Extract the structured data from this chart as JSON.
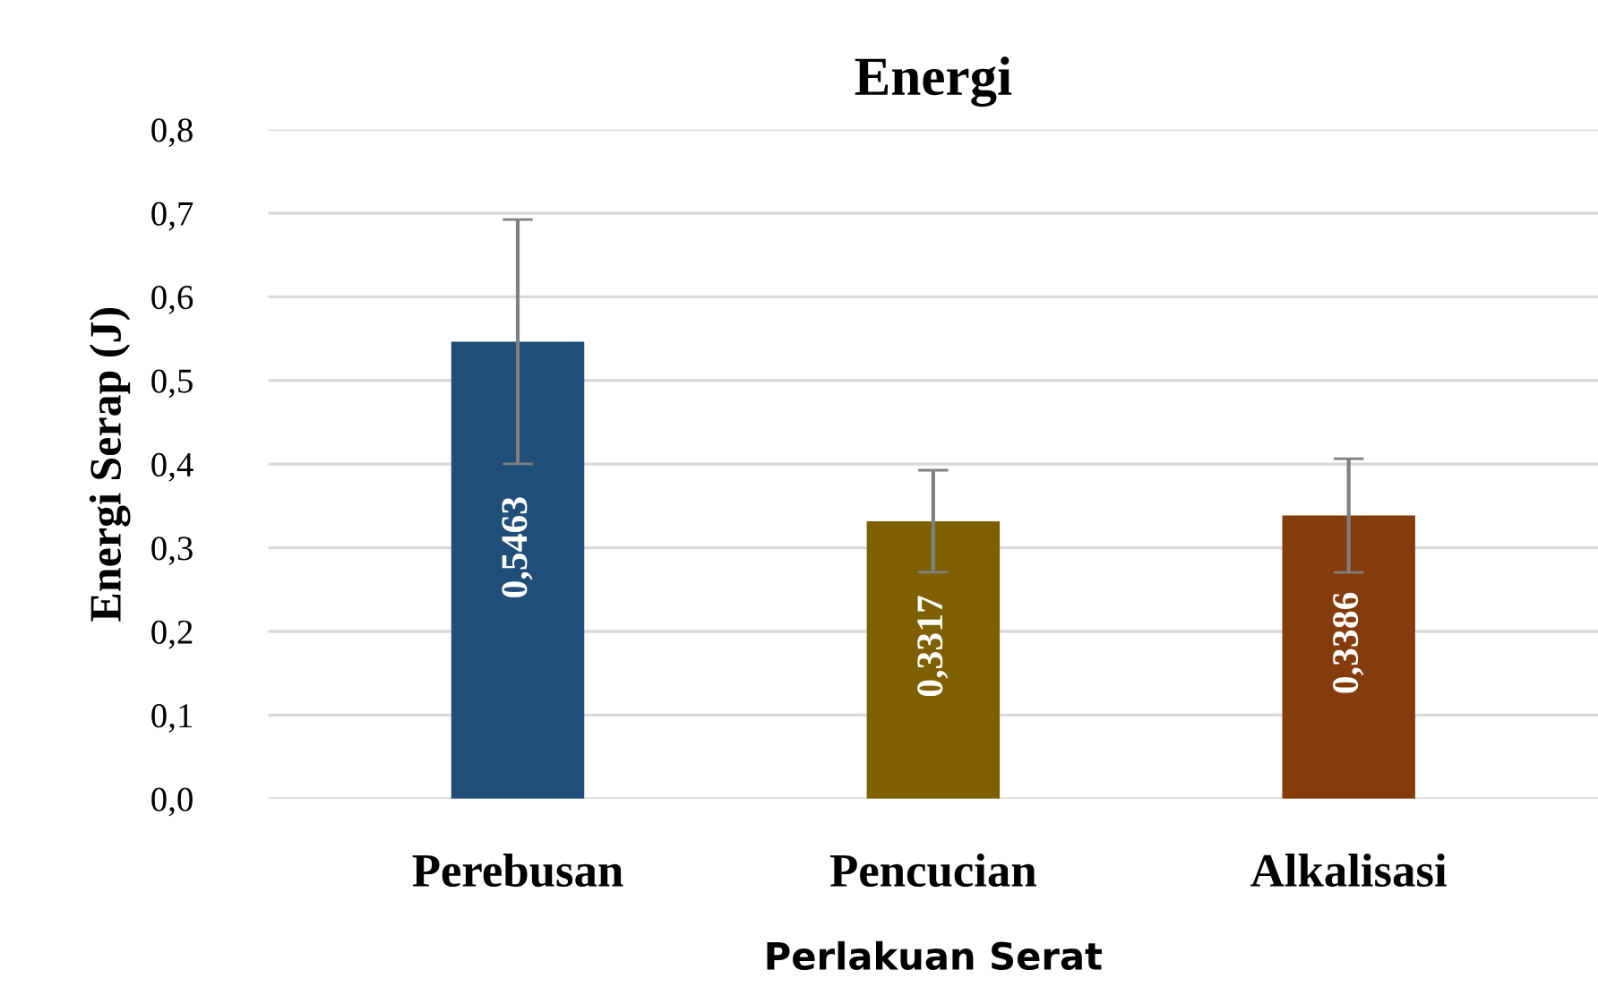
{
  "chart_data": {
    "type": "bar",
    "title": "Energi",
    "xlabel": "Perlakuan Serat",
    "ylabel": "Energi Serap (J)",
    "categories": [
      "Perebusan",
      "Pencucian",
      "Alkalisasi"
    ],
    "values": [
      0.5463,
      0.3317,
      0.3386
    ],
    "colors": [
      "#1f4e79",
      "#7f6000",
      "#843c0c"
    ],
    "errors": [
      0.146,
      0.061,
      0.068
    ],
    "value_labels": [
      "0,5463",
      "0,3317",
      "0,3386"
    ],
    "ylim": [
      0,
      0.8
    ],
    "yticks": [
      {
        "value": 0,
        "label": "0,0"
      },
      {
        "value": 0.1,
        "label": "0,1"
      },
      {
        "value": 0.2,
        "label": "0,2"
      },
      {
        "value": 0.3,
        "label": "0,3"
      },
      {
        "value": 0.4,
        "label": "0,4"
      },
      {
        "value": 0.5,
        "label": "0,5"
      },
      {
        "value": 0.6,
        "label": "0,6"
      },
      {
        "value": 0.7,
        "label": "0,7"
      },
      {
        "value": 0.8,
        "label": "0,8"
      }
    ],
    "grid": "y",
    "legend": false
  }
}
